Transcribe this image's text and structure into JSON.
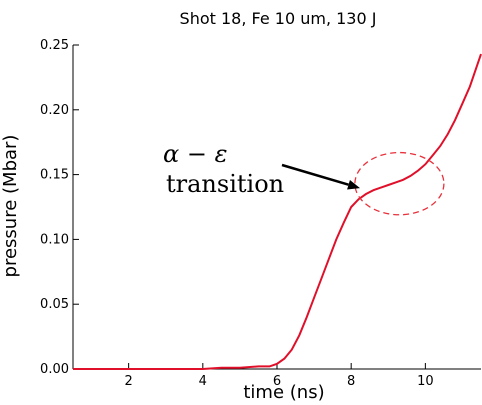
{
  "chart_data": {
    "type": "line",
    "title": "Shot 18, Fe 10 um, 130 J",
    "xlabel": "time (ns)",
    "ylabel": "pressure (Mbar)",
    "xlim": [
      0.5,
      11.5
    ],
    "ylim": [
      0,
      0.25
    ],
    "xticks": [
      2,
      4,
      6,
      8,
      10
    ],
    "xtick_labels": [
      "2",
      "4",
      "6",
      "8",
      "10"
    ],
    "yticks": [
      0,
      0.05,
      0.1,
      0.15,
      0.2,
      0.25
    ],
    "ytick_labels": [
      "0.00",
      "0.05",
      "0.10",
      "0.15",
      "0.20",
      "0.25"
    ],
    "grid": false,
    "line_color": "#e0102a",
    "annotation_color": "#e8313b",
    "series": [
      {
        "x": [
          0.5,
          1.0,
          2.0,
          3.0,
          4.0,
          4.5,
          5.0,
          5.5,
          5.8,
          6.0,
          6.2,
          6.4,
          6.6,
          6.8,
          7.0,
          7.2,
          7.4,
          7.6,
          7.8,
          8.0,
          8.2,
          8.4,
          8.6,
          8.8,
          9.0,
          9.2,
          9.4,
          9.6,
          9.8,
          10.0,
          10.2,
          10.4,
          10.6,
          10.8,
          11.0,
          11.2,
          11.5
        ],
        "y": [
          0.0,
          0.0,
          0.0,
          0.0,
          0.0,
          0.001,
          0.001,
          0.002,
          0.002,
          0.004,
          0.008,
          0.015,
          0.026,
          0.04,
          0.055,
          0.07,
          0.085,
          0.1,
          0.113,
          0.125,
          0.131,
          0.135,
          0.138,
          0.14,
          0.142,
          0.144,
          0.146,
          0.149,
          0.153,
          0.158,
          0.165,
          0.172,
          0.181,
          0.192,
          0.205,
          0.218,
          0.243
        ]
      }
    ],
    "annotations": [
      {
        "math": "α − ε",
        "text": "transition",
        "arrow_to": [
          8.4,
          0.138
        ],
        "ellipse_center": [
          9.3,
          0.143
        ],
        "ellipse_radii": [
          1.2,
          0.024
        ]
      }
    ]
  }
}
